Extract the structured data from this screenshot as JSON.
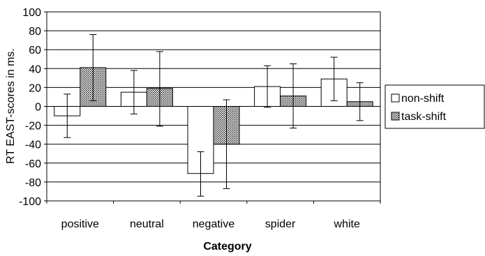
{
  "chart_data": {
    "type": "bar",
    "title": "",
    "xlabel": "Category",
    "ylabel": "RT EAST-scores in ms.",
    "ylim": [
      -100,
      100
    ],
    "yticks": [
      100,
      80,
      60,
      40,
      20,
      0,
      -20,
      -40,
      -60,
      -80,
      -100
    ],
    "grid": true,
    "legend_position": "right",
    "categories": [
      "positive",
      "neutral",
      "negative",
      "spider",
      "white"
    ],
    "series": [
      {
        "name": "non-shift",
        "fill": "white",
        "values": [
          -10,
          15,
          -71,
          21,
          29
        ],
        "err_low": [
          -33,
          -8,
          -95,
          -1,
          6
        ],
        "err_high": [
          13,
          38,
          -48,
          43,
          52
        ]
      },
      {
        "name": "task-shift",
        "fill": "dotted",
        "values": [
          41,
          19,
          -40,
          11,
          5
        ],
        "err_low": [
          6,
          -21,
          -87,
          -23,
          -15
        ],
        "err_high": [
          76,
          58,
          7,
          45,
          25
        ]
      }
    ]
  }
}
